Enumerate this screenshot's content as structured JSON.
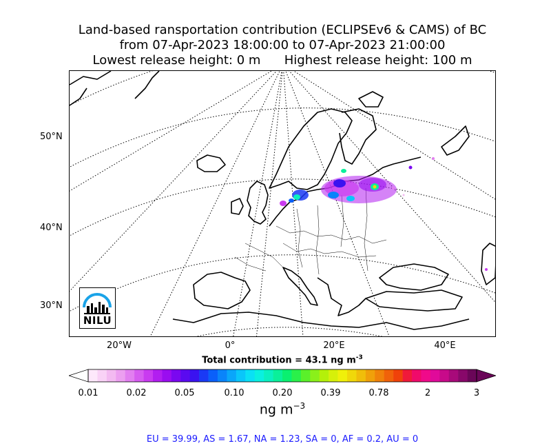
{
  "title": {
    "line1": "Land-based ransportation contribution (ECLIPSEv6 & CAMS) of BC",
    "line2": "from 07-Apr-2023 18:00:00 to 07-Apr-2023 21:00:00",
    "line3": "Lowest release height: 0 m      Highest release height: 100 m"
  },
  "map": {
    "lat_labels": [
      "50°N",
      "40°N",
      "30°N"
    ],
    "lon_labels": [
      "20°W",
      "0°",
      "20°E",
      "40°E"
    ],
    "logo_text": "NILU"
  },
  "total_contribution": "Total contribution = 43.1 ng m",
  "total_contribution_exp": "-3",
  "colorbar": {
    "ticks": [
      "0.01",
      "0.02",
      "0.05",
      "0.10",
      "0.20",
      "0.39",
      "0.78",
      "2",
      "3"
    ],
    "unit": "ng m",
    "unit_exp": "−3",
    "colors": [
      "#fde8fb",
      "#f9d2f6",
      "#f3baf1",
      "#ec9ff0",
      "#e27ff0",
      "#d65cf0",
      "#c93bf0",
      "#b21ef0",
      "#9a0df0",
      "#7a08f0",
      "#5a0af0",
      "#3a12f0",
      "#1a3af5",
      "#0a60fa",
      "#0a84fa",
      "#0aa6fa",
      "#0ac6fa",
      "#0ae0f5",
      "#0af0e0",
      "#0af0c0",
      "#0af09a",
      "#0af070",
      "#2af04a",
      "#5af02a",
      "#8af01a",
      "#b4f00a",
      "#d6f00a",
      "#f0f00a",
      "#f0d80a",
      "#f0be0a",
      "#f0a00a",
      "#f0820a",
      "#f0620a",
      "#f0420a",
      "#f01a3a",
      "#f00a6a",
      "#f00a8a",
      "#e00a9a",
      "#c80a8a",
      "#a80a7a",
      "#88086a",
      "#6a0658"
    ]
  },
  "stats": "EU = 39.99,  AS = 1.67,  NA = 1.23,  SA = 0,  AF = 0.2,  AU = 0"
}
